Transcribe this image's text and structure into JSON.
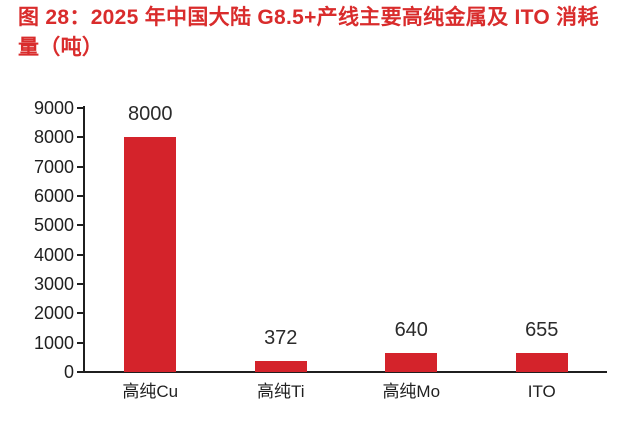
{
  "page": {
    "background": "#ffffff"
  },
  "header": {
    "title_lines": [
      "图 28：2025 年中国大陆 G8.5+产线主要高纯金属及 ITO 消耗",
      "量（吨）"
    ],
    "title_color": "#d92c2c"
  },
  "chart_data": {
    "type": "bar",
    "title": "图 28：2025 年中国大陆 G8.5+产线主要高纯金属及 ITO 消耗量（吨）",
    "categories": [
      "高纯Cu",
      "高纯Ti",
      "高纯Mo",
      "ITO"
    ],
    "values": [
      8000,
      372,
      640,
      655
    ],
    "data_labels": [
      "8000",
      "372",
      "640",
      "655"
    ],
    "xlabel": "",
    "ylabel": "",
    "ylim": [
      0,
      9000
    ],
    "ytick_step": 1000,
    "ytick_labels": [
      "0",
      "1000",
      "2000",
      "3000",
      "4000",
      "5000",
      "6000",
      "7000",
      "8000",
      "9000"
    ],
    "grid": false,
    "legend_position": "none",
    "bar_color": "#d4232b",
    "axis_color": "#1f1f1f",
    "value_label_color": "#2b2b2b"
  }
}
